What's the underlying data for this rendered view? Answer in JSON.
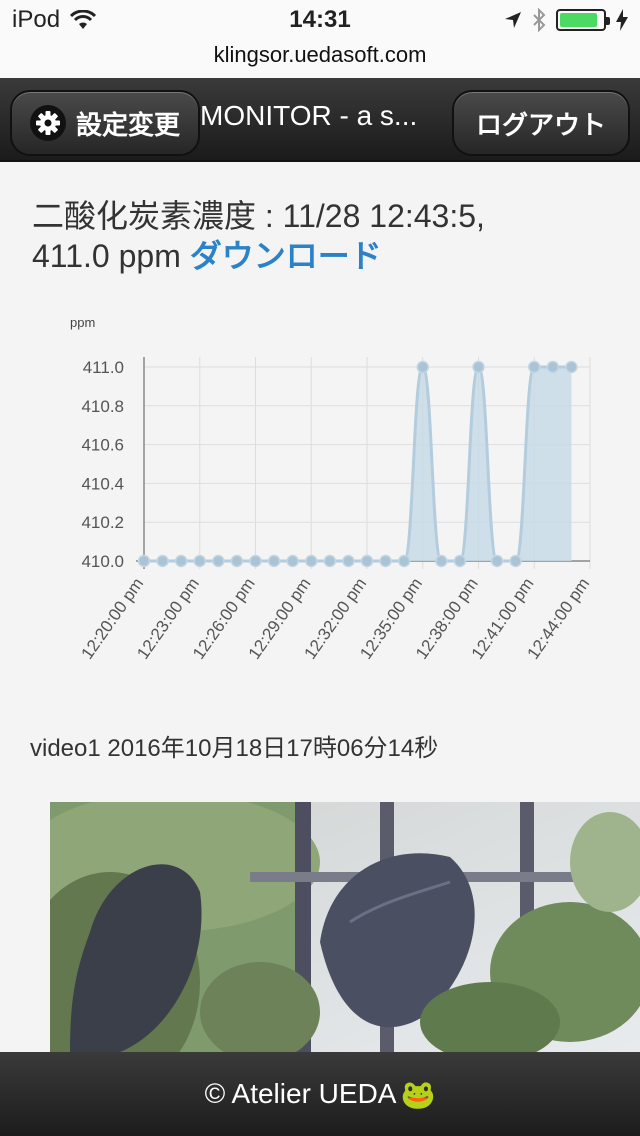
{
  "status_bar": {
    "carrier": "iPod",
    "time": "14:31"
  },
  "browser": {
    "url": "klingsor.uedasoft.com"
  },
  "header": {
    "settings_label": "設定変更",
    "title": "MONITOR - a s...",
    "logout_label": "ログアウト"
  },
  "co2": {
    "label": "二酸化炭素濃度 : 11/28 12:43:5,",
    "value": "411.0 ppm",
    "download_label": "ダウンロード"
  },
  "chart_data": {
    "type": "area",
    "ylabel": "ppm",
    "ylim": [
      410.0,
      411.0
    ],
    "yticks": [
      "411.0",
      "410.8",
      "410.6",
      "410.4",
      "410.2",
      "410.0"
    ],
    "xticks": [
      "12:20:00 pm",
      "12:23:00 pm",
      "12:26:00 pm",
      "12:29:00 pm",
      "12:32:00 pm",
      "12:35:00 pm",
      "12:38:00 pm",
      "12:41:00 pm",
      "12:44:00 pm"
    ],
    "xlim_minutes_from_first_tick": [
      0,
      24
    ],
    "x_minutes_from_first_tick": [
      0,
      1,
      2,
      3,
      4,
      5,
      6,
      7,
      8,
      9,
      10,
      11,
      12,
      13,
      14,
      15,
      16,
      17,
      18,
      19,
      20,
      21,
      22,
      23
    ],
    "values": [
      410.0,
      410.0,
      410.0,
      410.0,
      410.0,
      410.0,
      410.0,
      410.0,
      410.0,
      410.0,
      410.0,
      410.0,
      410.0,
      410.0,
      410.0,
      411.0,
      410.0,
      410.0,
      411.0,
      410.0,
      410.0,
      411.0,
      411.0,
      411.0
    ],
    "grid": true,
    "colors": {
      "fill": "#c8dae6",
      "line": "#b3cdde",
      "point": "#a9c4d6",
      "grid": "#dddddd"
    }
  },
  "video": {
    "caption": "video1 2016年10月18日17時06分14秒"
  },
  "footer": {
    "text": "© Atelier UEDA",
    "emoji": "🐸"
  }
}
